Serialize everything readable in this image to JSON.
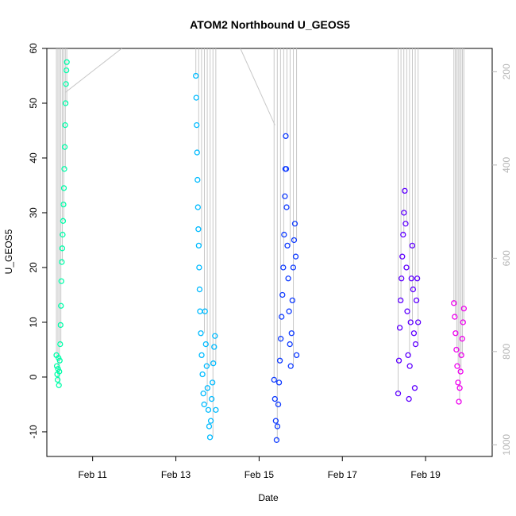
{
  "chart_data": {
    "type": "scatter",
    "title": "ATOM2 Northbound U_GEOS5",
    "xlabel": "Date",
    "ylabel": "U_GEOS5",
    "ylim": [
      -14.5,
      60
    ],
    "xlim": [
      9.9,
      20.6
    ],
    "y_ticks": [
      -10,
      0,
      10,
      20,
      30,
      40,
      50,
      60
    ],
    "x_ticks": [
      {
        "value": 11,
        "label": "Feb 11"
      },
      {
        "value": 13,
        "label": "Feb 13"
      },
      {
        "value": 15,
        "label": "Feb 15"
      },
      {
        "value": 17,
        "label": "Feb 17"
      },
      {
        "value": 19,
        "label": "Feb 19"
      }
    ],
    "right_axis": {
      "range": [
        1025,
        150
      ],
      "ticks": [
        200,
        400,
        600,
        800,
        1000
      ],
      "color": "#b5b5b5"
    },
    "pressure_trace_color": "#c8c8c8",
    "series": [
      {
        "color": "#00ffaa",
        "points": [
          [
            10.13,
            4.0
          ],
          [
            10.14,
            2.0
          ],
          [
            10.15,
            0.5
          ],
          [
            10.16,
            -0.5
          ],
          [
            10.17,
            1.5
          ],
          [
            10.18,
            3.5
          ],
          [
            10.19,
            -1.5
          ],
          [
            10.2,
            1.0
          ],
          [
            10.21,
            3.0
          ],
          [
            10.22,
            6.0
          ],
          [
            10.23,
            9.5
          ],
          [
            10.24,
            13.0
          ],
          [
            10.25,
            17.5
          ],
          [
            10.26,
            21.0
          ],
          [
            10.27,
            23.5
          ],
          [
            10.28,
            26.0
          ],
          [
            10.29,
            28.5
          ],
          [
            10.3,
            31.5
          ],
          [
            10.31,
            34.5
          ],
          [
            10.32,
            38.0
          ],
          [
            10.33,
            42.0
          ],
          [
            10.34,
            46.0
          ],
          [
            10.35,
            50.0
          ],
          [
            10.36,
            53.5
          ],
          [
            10.37,
            56.0
          ],
          [
            10.38,
            57.5
          ]
        ]
      },
      {
        "color": "#00bbff",
        "points": [
          [
            13.48,
            55.0
          ],
          [
            13.49,
            51.0
          ],
          [
            13.5,
            46.0
          ],
          [
            13.51,
            41.0
          ],
          [
            13.52,
            36.0
          ],
          [
            13.53,
            31.0
          ],
          [
            13.54,
            27.0
          ],
          [
            13.55,
            24.0
          ],
          [
            13.56,
            20.0
          ],
          [
            13.57,
            16.0
          ],
          [
            13.58,
            12.0
          ],
          [
            13.6,
            8.0
          ],
          [
            13.62,
            4.0
          ],
          [
            13.64,
            0.5
          ],
          [
            13.66,
            -3.0
          ],
          [
            13.68,
            -5.0
          ],
          [
            13.7,
            12.0
          ],
          [
            13.72,
            6.0
          ],
          [
            13.74,
            2.0
          ],
          [
            13.76,
            -2.0
          ],
          [
            13.78,
            -6.0
          ],
          [
            13.8,
            -9.0
          ],
          [
            13.82,
            -11.0
          ],
          [
            13.84,
            -8.0
          ],
          [
            13.86,
            -4.0
          ],
          [
            13.88,
            -1.0
          ],
          [
            13.9,
            2.5
          ],
          [
            13.92,
            5.5
          ],
          [
            13.94,
            7.5
          ],
          [
            13.96,
            -6.0
          ]
        ]
      },
      {
        "color": "#0f3bff",
        "points": [
          [
            15.36,
            -0.5
          ],
          [
            15.38,
            -4.0
          ],
          [
            15.4,
            -8.0
          ],
          [
            15.42,
            -11.5
          ],
          [
            15.44,
            -9.0
          ],
          [
            15.46,
            -5.0
          ],
          [
            15.48,
            -1.0
          ],
          [
            15.5,
            3.0
          ],
          [
            15.52,
            7.0
          ],
          [
            15.54,
            11.0
          ],
          [
            15.56,
            15.0
          ],
          [
            15.58,
            20.0
          ],
          [
            15.6,
            26.0
          ],
          [
            15.62,
            33.0
          ],
          [
            15.63,
            38.0
          ],
          [
            15.64,
            44.0
          ],
          [
            15.65,
            38.0
          ],
          [
            15.66,
            31.0
          ],
          [
            15.68,
            24.0
          ],
          [
            15.7,
            18.0
          ],
          [
            15.72,
            12.0
          ],
          [
            15.74,
            6.0
          ],
          [
            15.76,
            2.0
          ],
          [
            15.78,
            8.0
          ],
          [
            15.8,
            14.0
          ],
          [
            15.82,
            20.0
          ],
          [
            15.84,
            25.0
          ],
          [
            15.86,
            28.0
          ],
          [
            15.88,
            22.0
          ],
          [
            15.9,
            4.0
          ]
        ]
      },
      {
        "color": "#5f00ff",
        "points": [
          [
            18.34,
            -3.0
          ],
          [
            18.36,
            3.0
          ],
          [
            18.38,
            9.0
          ],
          [
            18.4,
            14.0
          ],
          [
            18.42,
            18.0
          ],
          [
            18.44,
            22.0
          ],
          [
            18.46,
            26.0
          ],
          [
            18.48,
            30.0
          ],
          [
            18.5,
            34.0
          ],
          [
            18.52,
            28.0
          ],
          [
            18.54,
            20.0
          ],
          [
            18.56,
            12.0
          ],
          [
            18.58,
            4.0
          ],
          [
            18.6,
            -4.0
          ],
          [
            18.62,
            2.0
          ],
          [
            18.64,
            10.0
          ],
          [
            18.66,
            18.0
          ],
          [
            18.68,
            24.0
          ],
          [
            18.7,
            16.0
          ],
          [
            18.72,
            8.0
          ],
          [
            18.74,
            -2.0
          ],
          [
            18.76,
            6.0
          ],
          [
            18.78,
            14.0
          ],
          [
            18.8,
            18.0
          ],
          [
            18.82,
            10.0
          ]
        ]
      },
      {
        "color": "#ee00ee",
        "points": [
          [
            19.68,
            13.5
          ],
          [
            19.7,
            11.0
          ],
          [
            19.72,
            8.0
          ],
          [
            19.74,
            5.0
          ],
          [
            19.76,
            2.0
          ],
          [
            19.78,
            -1.0
          ],
          [
            19.8,
            -4.5
          ],
          [
            19.82,
            -2.0
          ],
          [
            19.84,
            1.0
          ],
          [
            19.86,
            4.0
          ],
          [
            19.88,
            7.0
          ],
          [
            19.9,
            10.0
          ],
          [
            19.92,
            12.5
          ]
        ]
      }
    ]
  }
}
